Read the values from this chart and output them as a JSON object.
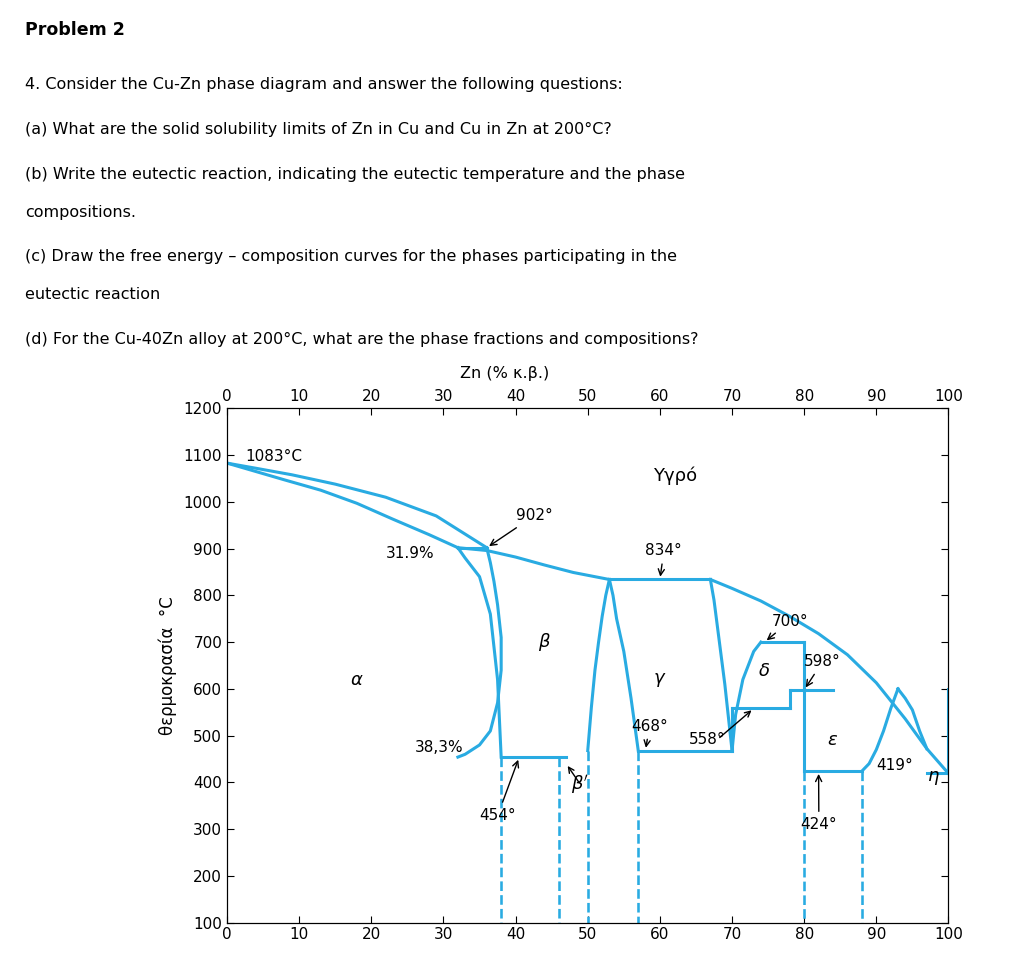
{
  "title_text": "Problem 2",
  "problem_lines": [
    "4. Consider the Cu-Zn phase diagram and answer the following questions:",
    "(a) What are the solid solubility limits of Zn in Cu and Cu in Zn at 200°C?",
    "(b) Write the eutectic reaction, indicating the eutectic temperature and the phase",
    "compositions.",
    "(c) Draw the free energy – composition curves for the phases participating in the",
    "eutectic reaction",
    "(d) For the Cu-40Zn alloy at 200°C, what are the phase fractions and compositions?"
  ],
  "top_xaxis_label": "Zn (% κ.β.)",
  "yaxis_label": "θερμοκρασία  °C",
  "xlim": [
    0,
    100
  ],
  "ylim": [
    100,
    1200
  ],
  "xticks": [
    0,
    10,
    20,
    30,
    40,
    50,
    60,
    70,
    80,
    90,
    100
  ],
  "yticks": [
    100,
    200,
    300,
    400,
    500,
    600,
    700,
    800,
    900,
    1000,
    1100,
    1200
  ],
  "line_color": "#29ABE2",
  "bg_color": "#FFFFFF"
}
